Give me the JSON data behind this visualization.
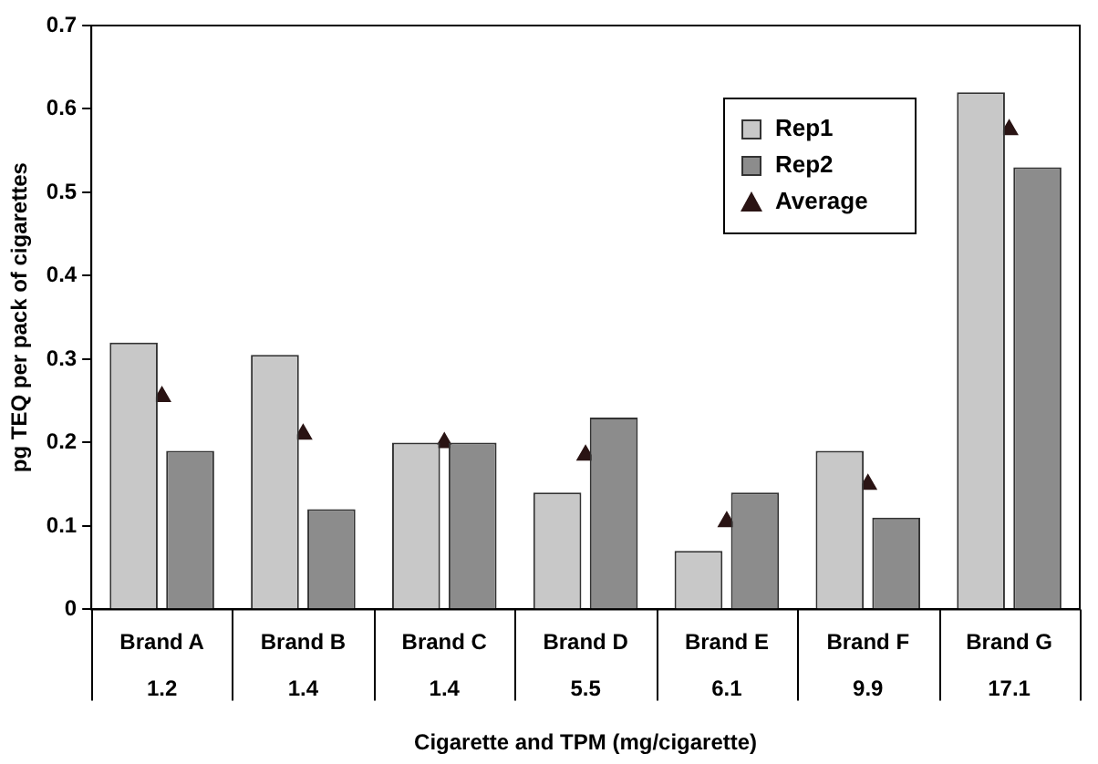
{
  "chart_data": {
    "type": "bar",
    "xlabel": "Cigarette and TPM (mg/cigarette)",
    "ylabel": "pg TEQ per pack of cigarettes",
    "categories": [
      "Brand A\n1.2",
      "Brand B\n1.4",
      "Brand C\n1.4",
      "Brand D\n5.5",
      "Brand E\n6.1",
      "Brand F\n9.9",
      "Brand G\n17.1"
    ],
    "series": [
      {
        "name": "Rep1",
        "color": "#c8c8c8",
        "values": [
          0.32,
          0.305,
          0.2,
          0.14,
          0.07,
          0.19,
          0.62
        ]
      },
      {
        "name": "Rep2",
        "color": "#8c8c8c",
        "values": [
          0.19,
          0.12,
          0.2,
          0.23,
          0.14,
          0.11,
          0.53
        ]
      },
      {
        "name": "Average",
        "type": "scatter",
        "marker": "triangle",
        "color": "#2a1414",
        "x": [
          "Brand A\n1.2",
          "Brand B\n1.4",
          "Brand C\n1.4",
          "Brand D\n5.5",
          "Brand E\n6.1",
          "Brand F\n9.9",
          "Brand G\n17.1"
        ],
        "values": [
          0.255,
          0.21,
          0.2,
          0.185,
          0.105,
          0.15,
          0.575
        ]
      }
    ],
    "ylim": [
      0,
      0.7
    ],
    "yticks": [
      0,
      0.1,
      0.2,
      0.3,
      0.4,
      0.5,
      0.6,
      0.7
    ],
    "grid": false,
    "legend": "top right"
  }
}
